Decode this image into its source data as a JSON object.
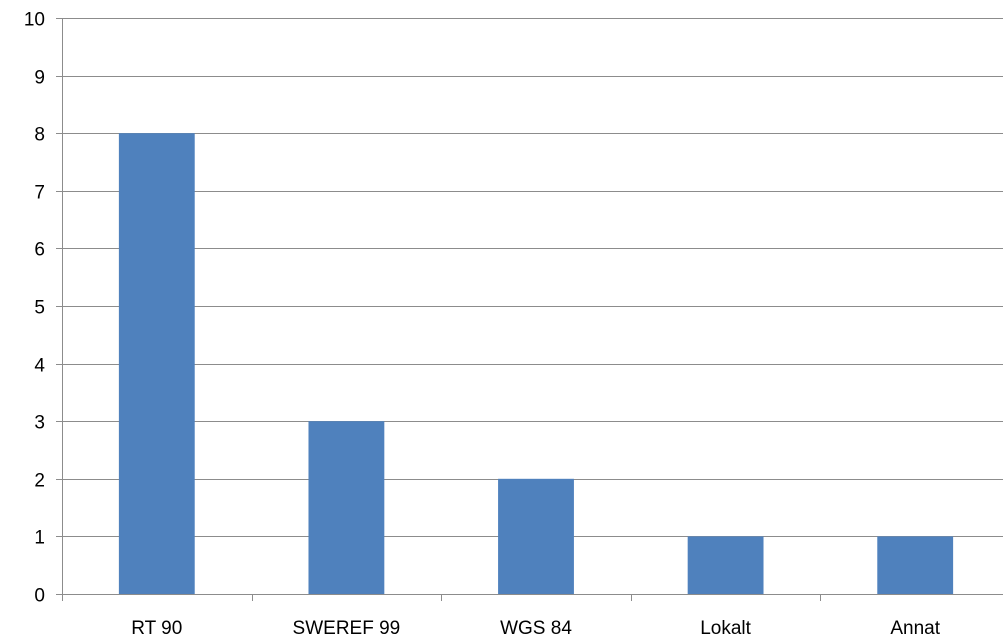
{
  "chart_data": {
    "type": "bar",
    "title": "",
    "xlabel": "",
    "ylabel": "",
    "categories": [
      "RT 90",
      "SWEREF 99",
      "WGS 84",
      "Lokalt",
      "Annat"
    ],
    "values": [
      8,
      3,
      2,
      1,
      1
    ],
    "ylim": [
      0,
      10
    ],
    "yticks": [
      "0",
      "1",
      "2",
      "3",
      "4",
      "5",
      "6",
      "7",
      "8",
      "9",
      "10"
    ],
    "grid": true,
    "legend": "none",
    "bar_color": "#4f81bd"
  }
}
